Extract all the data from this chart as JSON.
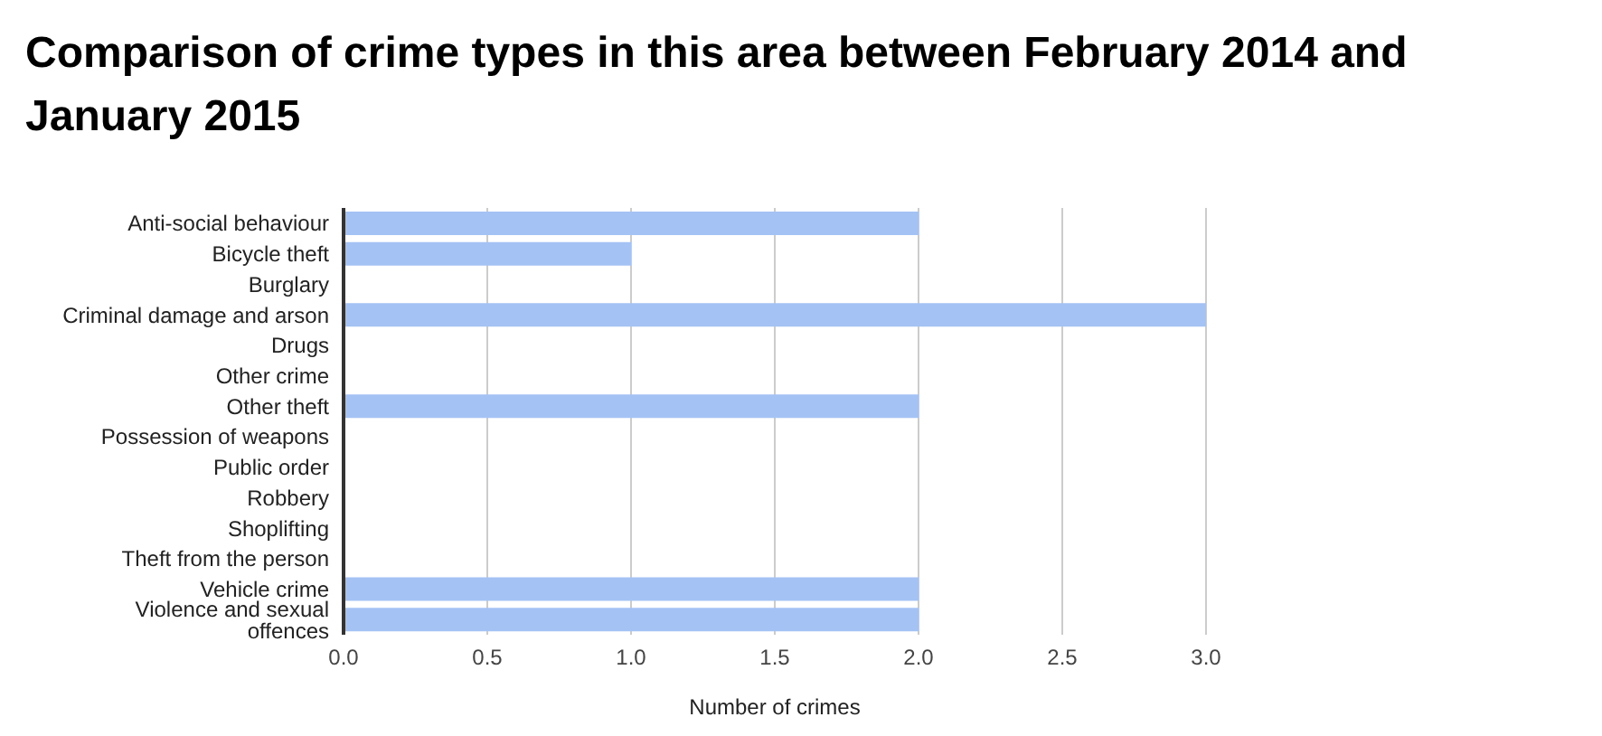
{
  "chart_data": {
    "type": "bar",
    "orientation": "horizontal",
    "title": "Comparison of crime types in this area between February 2014 and January 2015",
    "xlabel": "Number of crimes",
    "categories": [
      "Anti-social behaviour",
      "Bicycle theft",
      "Burglary",
      "Criminal damage and arson",
      "Drugs",
      "Other crime",
      "Other theft",
      "Possession of weapons",
      "Public order",
      "Robbery",
      "Shoplifting",
      "Theft from the person",
      "Vehicle crime",
      "Violence and sexual offences"
    ],
    "values": [
      2,
      1,
      0,
      3,
      0,
      0,
      2,
      0,
      0,
      0,
      0,
      0,
      2,
      2
    ],
    "color": "#a4c2f4",
    "xlim": [
      0,
      3
    ],
    "xticks": [
      {
        "value": 0,
        "label": "0.0"
      },
      {
        "value": 0.5,
        "label": "0.5"
      },
      {
        "value": 1,
        "label": "1.0"
      },
      {
        "value": 1.5,
        "label": "1.5"
      },
      {
        "value": 2,
        "label": "2.0"
      },
      {
        "value": 2.5,
        "label": "2.5"
      },
      {
        "value": 3,
        "label": "3.0"
      }
    ],
    "grid": "x",
    "legend": false
  }
}
